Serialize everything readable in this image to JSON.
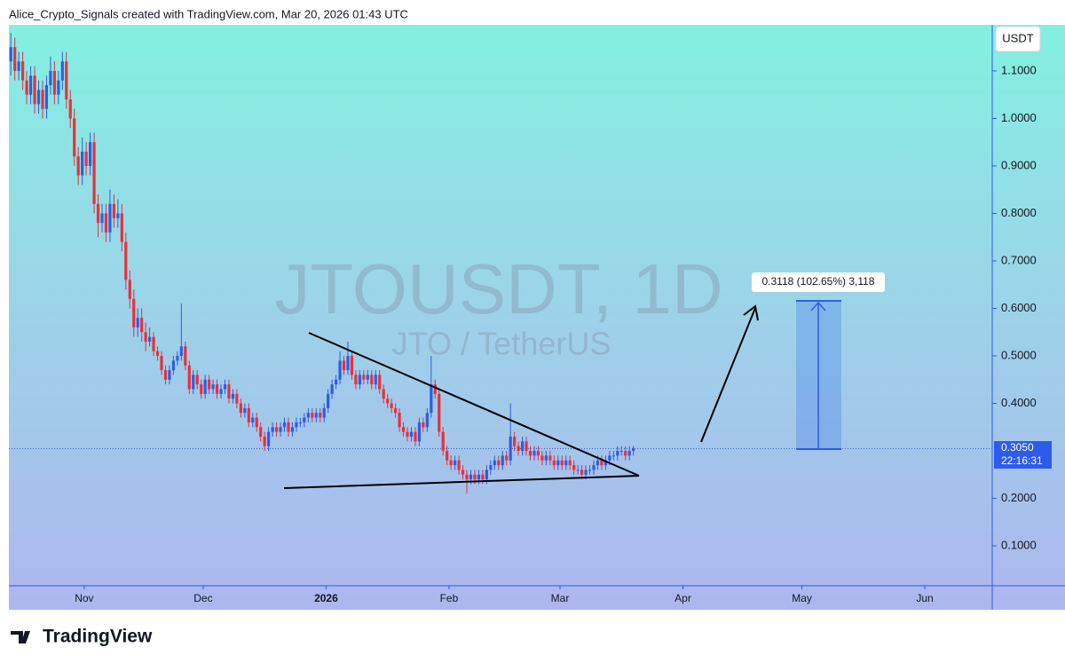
{
  "header": "Alice_Crypto_Signals created with TradingView.com, Mar 20, 2026 01:43 UTC",
  "footer": "TradingView",
  "chart_data": {
    "type": "candlestick",
    "title": "JTOUSDT, 1D",
    "subtitle": "JTO / TetherUS",
    "currency": "USDT",
    "up_color": "#2f5bea",
    "down_color": "#e8313a",
    "xlim": [
      0,
      248
    ],
    "xticks": [
      {
        "value": 19,
        "label": "Nov"
      },
      {
        "value": 49,
        "label": "Dec"
      },
      {
        "value": 80,
        "label": "2026"
      },
      {
        "value": 111,
        "label": "Feb"
      },
      {
        "value": 139,
        "label": "Mar"
      },
      {
        "value": 170,
        "label": "Apr"
      },
      {
        "value": 200,
        "label": "May"
      },
      {
        "value": 231,
        "label": "Jun"
      }
    ],
    "ylim": [
      0.016,
      1.197
    ],
    "yticks": [
      {
        "value": 0.1,
        "label": "0.1000"
      },
      {
        "value": 0.2,
        "label": "0.2000"
      },
      {
        "value": 0.4,
        "label": "0.4000"
      },
      {
        "value": 0.5,
        "label": "0.5000"
      },
      {
        "value": 0.6,
        "label": "0.6000"
      },
      {
        "value": 0.7,
        "label": "0.7000"
      },
      {
        "value": 0.8,
        "label": "0.8000"
      },
      {
        "value": 0.9,
        "label": "0.9000"
      },
      {
        "value": 1.0,
        "label": "1.0000"
      },
      {
        "value": 1.1,
        "label": "1.1000"
      }
    ],
    "last_price": {
      "value": 0.305,
      "label": "0.3050"
    },
    "countdown": "22:16:31",
    "measure_label": "0.3118 (102.65%) 3,118",
    "candles": [
      [
        1.12,
        1.18,
        1.09,
        1.15
      ],
      [
        1.15,
        1.17,
        1.08,
        1.1
      ],
      [
        1.1,
        1.14,
        1.08,
        1.12
      ],
      [
        1.12,
        1.14,
        1.06,
        1.08
      ],
      [
        1.08,
        1.1,
        1.03,
        1.05
      ],
      [
        1.05,
        1.11,
        1.03,
        1.09
      ],
      [
        1.09,
        1.11,
        1.01,
        1.03
      ],
      [
        1.03,
        1.08,
        1.01,
        1.06
      ],
      [
        1.06,
        1.08,
        1.0,
        1.02
      ],
      [
        1.02,
        1.09,
        1.0,
        1.07
      ],
      [
        1.07,
        1.13,
        1.05,
        1.1
      ],
      [
        1.1,
        1.12,
        1.03,
        1.05
      ],
      [
        1.05,
        1.1,
        1.03,
        1.08
      ],
      [
        1.08,
        1.14,
        1.06,
        1.12
      ],
      [
        1.12,
        1.14,
        1.02,
        1.04
      ],
      [
        1.04,
        1.06,
        0.98,
        1.0
      ],
      [
        1.0,
        1.02,
        0.9,
        0.92
      ],
      [
        0.92,
        0.94,
        0.86,
        0.88
      ],
      [
        0.88,
        0.96,
        0.86,
        0.93
      ],
      [
        0.93,
        0.95,
        0.88,
        0.9
      ],
      [
        0.9,
        0.97,
        0.88,
        0.95
      ],
      [
        0.95,
        0.97,
        0.8,
        0.82
      ],
      [
        0.82,
        0.84,
        0.75,
        0.78
      ],
      [
        0.78,
        0.82,
        0.76,
        0.8
      ],
      [
        0.8,
        0.82,
        0.74,
        0.76
      ],
      [
        0.76,
        0.85,
        0.74,
        0.82
      ],
      [
        0.82,
        0.84,
        0.77,
        0.79
      ],
      [
        0.79,
        0.83,
        0.77,
        0.8
      ],
      [
        0.8,
        0.82,
        0.72,
        0.74
      ],
      [
        0.74,
        0.76,
        0.64,
        0.66
      ],
      [
        0.66,
        0.68,
        0.6,
        0.62
      ],
      [
        0.62,
        0.64,
        0.54,
        0.56
      ],
      [
        0.56,
        0.6,
        0.54,
        0.58
      ],
      [
        0.58,
        0.6,
        0.53,
        0.55
      ],
      [
        0.55,
        0.57,
        0.51,
        0.53
      ],
      [
        0.53,
        0.56,
        0.52,
        0.54
      ],
      [
        0.54,
        0.55,
        0.5,
        0.51
      ],
      [
        0.51,
        0.52,
        0.49,
        0.5
      ],
      [
        0.5,
        0.51,
        0.46,
        0.47
      ],
      [
        0.47,
        0.48,
        0.44,
        0.45
      ],
      [
        0.45,
        0.48,
        0.44,
        0.47
      ],
      [
        0.47,
        0.5,
        0.46,
        0.49
      ],
      [
        0.49,
        0.51,
        0.48,
        0.5
      ],
      [
        0.5,
        0.61,
        0.49,
        0.52
      ],
      [
        0.52,
        0.53,
        0.47,
        0.48
      ],
      [
        0.48,
        0.49,
        0.42,
        0.43
      ],
      [
        0.43,
        0.47,
        0.42,
        0.46
      ],
      [
        0.46,
        0.47,
        0.43,
        0.44
      ],
      [
        0.44,
        0.45,
        0.41,
        0.42
      ],
      [
        0.42,
        0.46,
        0.41,
        0.45
      ],
      [
        0.45,
        0.46,
        0.42,
        0.43
      ],
      [
        0.43,
        0.45,
        0.42,
        0.44
      ],
      [
        0.44,
        0.45,
        0.41,
        0.42
      ],
      [
        0.42,
        0.44,
        0.41,
        0.43
      ],
      [
        0.43,
        0.45,
        0.42,
        0.44
      ],
      [
        0.44,
        0.45,
        0.4,
        0.41
      ],
      [
        0.41,
        0.43,
        0.4,
        0.42
      ],
      [
        0.42,
        0.43,
        0.39,
        0.4
      ],
      [
        0.4,
        0.41,
        0.37,
        0.38
      ],
      [
        0.38,
        0.4,
        0.37,
        0.39
      ],
      [
        0.39,
        0.4,
        0.35,
        0.36
      ],
      [
        0.36,
        0.38,
        0.35,
        0.37
      ],
      [
        0.37,
        0.38,
        0.34,
        0.35
      ],
      [
        0.35,
        0.36,
        0.32,
        0.33
      ],
      [
        0.33,
        0.34,
        0.3,
        0.31
      ],
      [
        0.31,
        0.35,
        0.3,
        0.34
      ],
      [
        0.34,
        0.36,
        0.33,
        0.35
      ],
      [
        0.35,
        0.36,
        0.33,
        0.34
      ],
      [
        0.34,
        0.36,
        0.33,
        0.35
      ],
      [
        0.35,
        0.37,
        0.34,
        0.36
      ],
      [
        0.36,
        0.37,
        0.33,
        0.34
      ],
      [
        0.34,
        0.36,
        0.33,
        0.35
      ],
      [
        0.35,
        0.37,
        0.34,
        0.36
      ],
      [
        0.36,
        0.37,
        0.35,
        0.36
      ],
      [
        0.36,
        0.38,
        0.35,
        0.37
      ],
      [
        0.37,
        0.39,
        0.36,
        0.38
      ],
      [
        0.38,
        0.39,
        0.36,
        0.37
      ],
      [
        0.37,
        0.39,
        0.36,
        0.38
      ],
      [
        0.38,
        0.39,
        0.36,
        0.37
      ],
      [
        0.37,
        0.4,
        0.36,
        0.39
      ],
      [
        0.39,
        0.43,
        0.38,
        0.42
      ],
      [
        0.42,
        0.45,
        0.41,
        0.44
      ],
      [
        0.44,
        0.46,
        0.43,
        0.45
      ],
      [
        0.45,
        0.51,
        0.44,
        0.49
      ],
      [
        0.49,
        0.5,
        0.46,
        0.47
      ],
      [
        0.47,
        0.53,
        0.46,
        0.5
      ],
      [
        0.5,
        0.51,
        0.45,
        0.46
      ],
      [
        0.46,
        0.47,
        0.43,
        0.44
      ],
      [
        0.44,
        0.47,
        0.43,
        0.46
      ],
      [
        0.46,
        0.47,
        0.44,
        0.45
      ],
      [
        0.45,
        0.47,
        0.44,
        0.46
      ],
      [
        0.46,
        0.47,
        0.43,
        0.44
      ],
      [
        0.44,
        0.47,
        0.43,
        0.46
      ],
      [
        0.46,
        0.47,
        0.42,
        0.43
      ],
      [
        0.43,
        0.44,
        0.4,
        0.41
      ],
      [
        0.41,
        0.42,
        0.39,
        0.4
      ],
      [
        0.4,
        0.41,
        0.38,
        0.39
      ],
      [
        0.39,
        0.4,
        0.37,
        0.38
      ],
      [
        0.38,
        0.39,
        0.34,
        0.35
      ],
      [
        0.35,
        0.36,
        0.33,
        0.34
      ],
      [
        0.34,
        0.35,
        0.32,
        0.33
      ],
      [
        0.33,
        0.35,
        0.32,
        0.34
      ],
      [
        0.34,
        0.35,
        0.31,
        0.32
      ],
      [
        0.32,
        0.37,
        0.31,
        0.36
      ],
      [
        0.36,
        0.37,
        0.34,
        0.35
      ],
      [
        0.35,
        0.39,
        0.34,
        0.38
      ],
      [
        0.38,
        0.5,
        0.37,
        0.44
      ],
      [
        0.44,
        0.45,
        0.41,
        0.42
      ],
      [
        0.42,
        0.43,
        0.33,
        0.34
      ],
      [
        0.34,
        0.35,
        0.29,
        0.3
      ],
      [
        0.3,
        0.31,
        0.27,
        0.28
      ],
      [
        0.28,
        0.29,
        0.26,
        0.27
      ],
      [
        0.27,
        0.29,
        0.26,
        0.28
      ],
      [
        0.28,
        0.29,
        0.25,
        0.26
      ],
      [
        0.26,
        0.27,
        0.24,
        0.25
      ],
      [
        0.25,
        0.26,
        0.21,
        0.24
      ],
      [
        0.24,
        0.26,
        0.23,
        0.25
      ],
      [
        0.25,
        0.26,
        0.23,
        0.24
      ],
      [
        0.24,
        0.26,
        0.23,
        0.25
      ],
      [
        0.25,
        0.26,
        0.23,
        0.24
      ],
      [
        0.24,
        0.27,
        0.23,
        0.26
      ],
      [
        0.26,
        0.28,
        0.25,
        0.27
      ],
      [
        0.27,
        0.29,
        0.26,
        0.28
      ],
      [
        0.28,
        0.29,
        0.26,
        0.27
      ],
      [
        0.27,
        0.3,
        0.26,
        0.29
      ],
      [
        0.29,
        0.3,
        0.27,
        0.28
      ],
      [
        0.28,
        0.4,
        0.27,
        0.33
      ],
      [
        0.33,
        0.34,
        0.3,
        0.31
      ],
      [
        0.31,
        0.32,
        0.29,
        0.3
      ],
      [
        0.3,
        0.33,
        0.29,
        0.32
      ],
      [
        0.32,
        0.33,
        0.29,
        0.3
      ],
      [
        0.3,
        0.31,
        0.28,
        0.29
      ],
      [
        0.29,
        0.31,
        0.28,
        0.3
      ],
      [
        0.3,
        0.31,
        0.28,
        0.29
      ],
      [
        0.29,
        0.3,
        0.27,
        0.28
      ],
      [
        0.28,
        0.3,
        0.27,
        0.29
      ],
      [
        0.29,
        0.3,
        0.27,
        0.28
      ],
      [
        0.28,
        0.29,
        0.26,
        0.27
      ],
      [
        0.27,
        0.29,
        0.26,
        0.28
      ],
      [
        0.28,
        0.29,
        0.26,
        0.27
      ],
      [
        0.27,
        0.29,
        0.26,
        0.28
      ],
      [
        0.28,
        0.29,
        0.26,
        0.27
      ],
      [
        0.27,
        0.28,
        0.25,
        0.26
      ],
      [
        0.26,
        0.27,
        0.25,
        0.26
      ],
      [
        0.26,
        0.27,
        0.24,
        0.25
      ],
      [
        0.25,
        0.27,
        0.24,
        0.26
      ],
      [
        0.26,
        0.27,
        0.25,
        0.26
      ],
      [
        0.26,
        0.28,
        0.25,
        0.27
      ],
      [
        0.27,
        0.29,
        0.26,
        0.28
      ],
      [
        0.28,
        0.29,
        0.26,
        0.27
      ],
      [
        0.27,
        0.29,
        0.26,
        0.28
      ],
      [
        0.28,
        0.3,
        0.27,
        0.29
      ],
      [
        0.29,
        0.3,
        0.28,
        0.29
      ],
      [
        0.29,
        0.31,
        0.28,
        0.3
      ],
      [
        0.3,
        0.31,
        0.29,
        0.3
      ],
      [
        0.3,
        0.31,
        0.28,
        0.29
      ],
      [
        0.29,
        0.31,
        0.28,
        0.3
      ],
      [
        0.3,
        0.31,
        0.29,
        0.305
      ]
    ]
  }
}
